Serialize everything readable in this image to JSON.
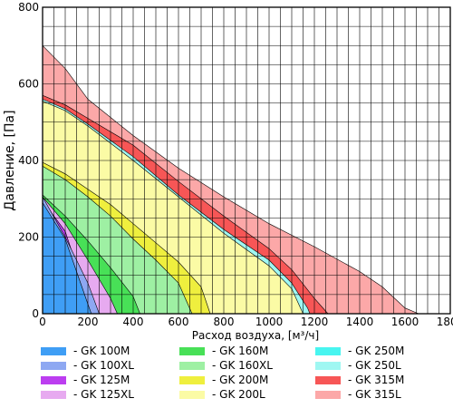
{
  "chart_data": {
    "type": "area",
    "xlabel": "Расход воздуха, [м³/ч]",
    "ylabel": "Давление, [Па]",
    "xlim": [
      0,
      1800
    ],
    "ylim": [
      0,
      800
    ],
    "x_ticks": [
      "0",
      "200",
      "400",
      "600",
      "800",
      "1000",
      "1200",
      "1400",
      "1600",
      "1800"
    ],
    "y_ticks": [
      "0",
      "200",
      "400",
      "600",
      "800"
    ],
    "grid": true,
    "legend_position": "bottom",
    "series": [
      {
        "name": "- GK 315L",
        "color": "#fca8a8",
        "points": [
          [
            0,
            700
          ],
          [
            100,
            640
          ],
          [
            200,
            560
          ],
          [
            400,
            465
          ],
          [
            600,
            380
          ],
          [
            800,
            305
          ],
          [
            1000,
            235
          ],
          [
            1200,
            175
          ],
          [
            1400,
            110
          ],
          [
            1500,
            70
          ],
          [
            1600,
            15
          ],
          [
            1660,
            0
          ]
        ]
      },
      {
        "name": "- GK 315M",
        "color": "#f75656",
        "points": [
          [
            0,
            570
          ],
          [
            100,
            545
          ],
          [
            200,
            510
          ],
          [
            400,
            440
          ],
          [
            600,
            345
          ],
          [
            800,
            255
          ],
          [
            1000,
            170
          ],
          [
            1100,
            115
          ],
          [
            1200,
            40
          ],
          [
            1260,
            0
          ]
        ]
      },
      {
        "name": "- GK 250L",
        "color": "#9ff7f2",
        "points": [
          [
            0,
            560
          ],
          [
            100,
            535
          ],
          [
            200,
            495
          ],
          [
            400,
            410
          ],
          [
            600,
            310
          ],
          [
            800,
            220
          ],
          [
            1000,
            140
          ],
          [
            1100,
            80
          ],
          [
            1170,
            15
          ],
          [
            1180,
            0
          ]
        ]
      },
      {
        "name": "- GK 250M",
        "color": "#48f5f0",
        "points": [
          [
            0,
            400
          ],
          [
            100,
            370
          ],
          [
            200,
            335
          ],
          [
            400,
            250
          ],
          [
            600,
            160
          ],
          [
            700,
            110
          ],
          [
            800,
            45
          ],
          [
            840,
            0
          ]
        ]
      },
      {
        "name": "- GK 200L",
        "color": "#fbfba5",
        "points": [
          [
            0,
            555
          ],
          [
            100,
            530
          ],
          [
            200,
            490
          ],
          [
            400,
            400
          ],
          [
            600,
            305
          ],
          [
            800,
            210
          ],
          [
            1000,
            125
          ],
          [
            1100,
            65
          ],
          [
            1150,
            0
          ]
        ]
      },
      {
        "name": "- GK 200M",
        "color": "#efef3e",
        "points": [
          [
            0,
            395
          ],
          [
            100,
            365
          ],
          [
            200,
            325
          ],
          [
            300,
            285
          ],
          [
            400,
            235
          ],
          [
            500,
            185
          ],
          [
            600,
            135
          ],
          [
            700,
            70
          ],
          [
            740,
            0
          ]
        ]
      },
      {
        "name": "- GK 160XL",
        "color": "#9ef0a3",
        "points": [
          [
            0,
            385
          ],
          [
            100,
            350
          ],
          [
            200,
            305
          ],
          [
            300,
            255
          ],
          [
            400,
            195
          ],
          [
            500,
            140
          ],
          [
            600,
            80
          ],
          [
            660,
            0
          ]
        ]
      },
      {
        "name": "- GK 160M",
        "color": "#48e057",
        "points": [
          [
            0,
            310
          ],
          [
            100,
            255
          ],
          [
            200,
            190
          ],
          [
            300,
            120
          ],
          [
            400,
            45
          ],
          [
            430,
            0
          ]
        ]
      },
      {
        "name": "- GK 125XL",
        "color": "#e7aaf0",
        "points": [
          [
            0,
            305
          ],
          [
            100,
            235
          ],
          [
            200,
            140
          ],
          [
            300,
            40
          ],
          [
            330,
            0
          ]
        ]
      },
      {
        "name": "- GK 125M",
        "color": "#bc3ef0",
        "points": [
          [
            0,
            295
          ],
          [
            100,
            215
          ],
          [
            150,
            125
          ],
          [
            200,
            40
          ],
          [
            230,
            0
          ]
        ]
      },
      {
        "name": "- GK 100XL",
        "color": "#8ea8f2",
        "points": [
          [
            0,
            305
          ],
          [
            100,
            200
          ],
          [
            200,
            80
          ],
          [
            250,
            0
          ]
        ]
      },
      {
        "name": "- GK 100M",
        "color": "#3f9ef5",
        "points": [
          [
            0,
            290
          ],
          [
            100,
            195
          ],
          [
            150,
            110
          ],
          [
            200,
            25
          ],
          [
            215,
            0
          ]
        ]
      }
    ],
    "legend": [
      {
        "name": "- GK 100M",
        "color": "#3f9ef5"
      },
      {
        "name": "- GK 100XL",
        "color": "#8ea8f2"
      },
      {
        "name": "- GK 125M",
        "color": "#bc3ef0"
      },
      {
        "name": "- GK 125XL",
        "color": "#e7aaf0"
      },
      {
        "name": "- GK 160M",
        "color": "#48e057"
      },
      {
        "name": "- GK 160XL",
        "color": "#9ef0a3"
      },
      {
        "name": "- GK 200M",
        "color": "#efef3e"
      },
      {
        "name": "- GK 200L",
        "color": "#fbfba5"
      },
      {
        "name": "- GK 250M",
        "color": "#48f5f0"
      },
      {
        "name": "- GK 250L",
        "color": "#9ff7f2"
      },
      {
        "name": "- GK 315M",
        "color": "#f75656"
      },
      {
        "name": "- GK 315L",
        "color": "#fca8a8"
      }
    ]
  }
}
